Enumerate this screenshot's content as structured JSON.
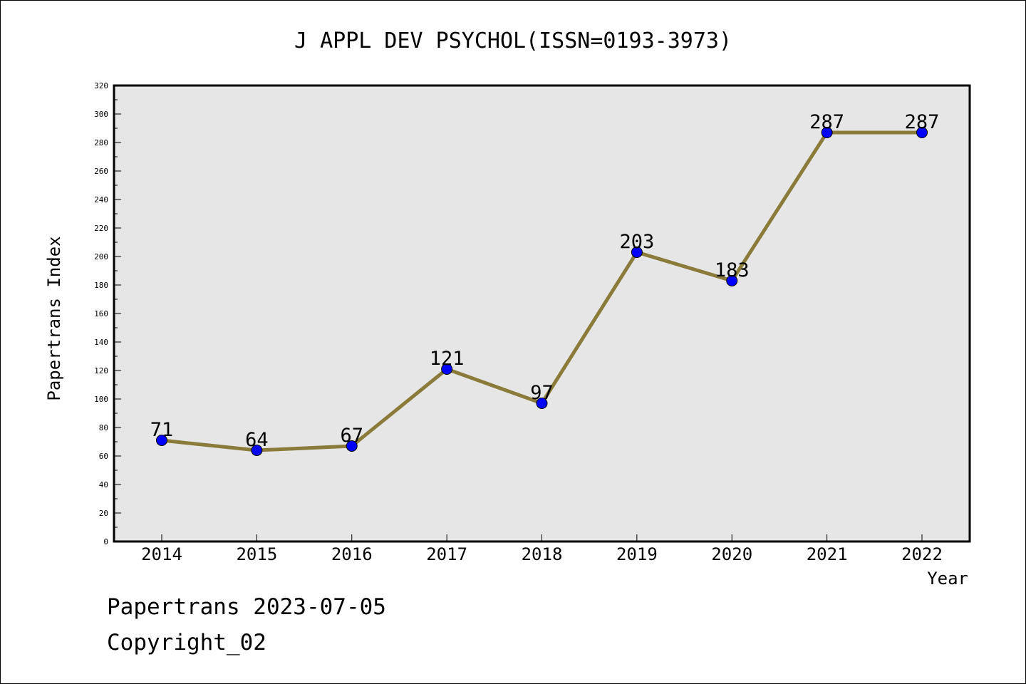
{
  "chart_data": {
    "type": "line",
    "title": "J APPL DEV PSYCHOL(ISSN=0193-3973)",
    "xlabel": "Year",
    "ylabel": "Papertrans Index",
    "categories": [
      "2014",
      "2015",
      "2016",
      "2017",
      "2018",
      "2019",
      "2020",
      "2021",
      "2022"
    ],
    "series": [
      {
        "values": [
          71,
          64,
          67,
          121,
          97,
          203,
          183,
          287,
          287
        ]
      }
    ],
    "ylim": [
      0,
      320
    ],
    "yticks": [
      0,
      20,
      40,
      60,
      80,
      100,
      120,
      140,
      160,
      180,
      200,
      220,
      240,
      260,
      280,
      300,
      320
    ],
    "grid": false,
    "colors": {
      "line": "#8b7b3a",
      "marker": "#0000ff",
      "plot_background": "#e6e6e6"
    }
  },
  "footer": {
    "line1": "Papertrans 2023-07-05",
    "line2": "Copyright_02"
  }
}
